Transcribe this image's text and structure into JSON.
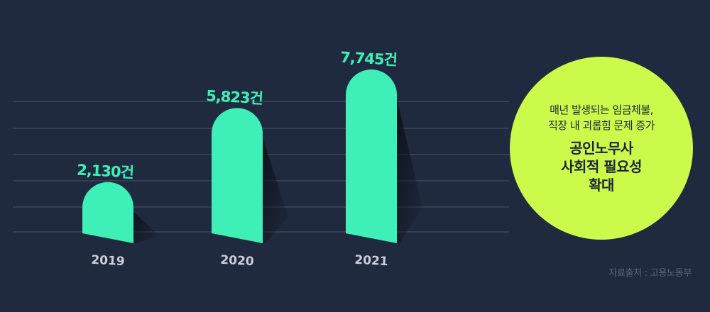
{
  "chart_data": {
    "type": "bar",
    "categories": [
      "2019",
      "2020",
      "2021"
    ],
    "values": [
      2130,
      5823,
      7745
    ],
    "data_labels": [
      "2,130건",
      "5,823건",
      "7,745건"
    ],
    "unit": "건",
    "grid": true,
    "bar_color": "#3ef0b8",
    "title": "",
    "xlabel": "",
    "ylabel": ""
  },
  "callout": {
    "line1": "매년 발생되는 임금체불,",
    "line2": "직장 내 괴롭힘 문제 증가",
    "headline1": "공인노무사",
    "headline2": "사회적 필요성",
    "headline3": "확대"
  },
  "source": "자료출처 : 고용노동부",
  "colors": {
    "background": "#202a3e",
    "accent": "#ccfa4a",
    "bar": "#3ef0b8"
  }
}
